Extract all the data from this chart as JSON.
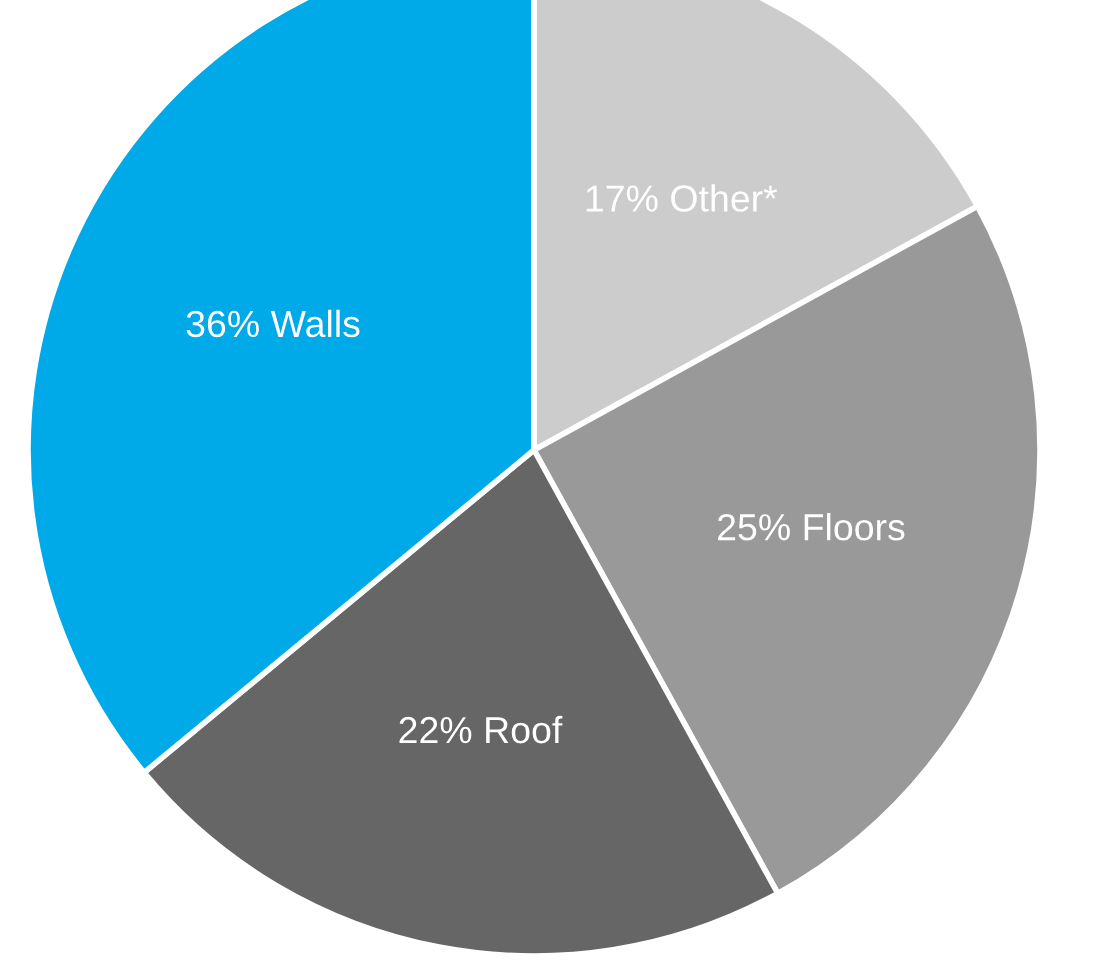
{
  "chart_data": {
    "type": "pie",
    "categories": [
      "17% Other*",
      "25% Floors",
      "22% Roof",
      "36% Walls"
    ],
    "values": [
      17,
      25,
      22,
      36
    ],
    "colors": [
      "#cccccc",
      "#999999",
      "#666666",
      "#00a9e8"
    ],
    "legend": false
  }
}
